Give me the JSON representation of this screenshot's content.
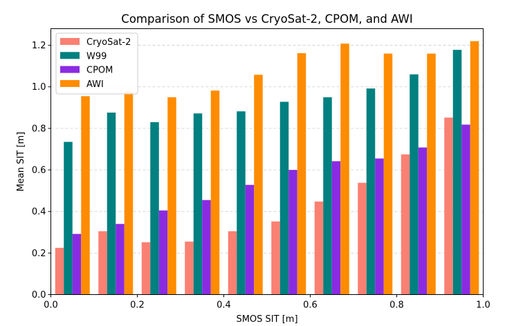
{
  "chart_data": {
    "type": "bar",
    "title": "Comparison of SMOS vs CryoSat-2, CPOM, and AWI",
    "xlabel": "SMOS SIT [m]",
    "ylabel": "Mean SIT [m]",
    "xlim": [
      0.0,
      1.0
    ],
    "ylim": [
      0.0,
      1.28
    ],
    "xticks": [
      "0.0",
      "0.2",
      "0.4",
      "0.6",
      "0.8",
      "1.0"
    ],
    "yticks": [
      "0.0",
      "0.2",
      "0.4",
      "0.6",
      "0.8",
      "1.0",
      "1.2"
    ],
    "grid": "y-dashed",
    "legend_position": "upper-left",
    "bin_centers": [
      0.05,
      0.15,
      0.25,
      0.35,
      0.45,
      0.55,
      0.65,
      0.75,
      0.85,
      0.95
    ],
    "bar_width": 0.02,
    "series": [
      {
        "name": "CryoSat-2",
        "color": "#fa8072",
        "values": [
          0.225,
          0.305,
          0.252,
          0.255,
          0.305,
          0.352,
          0.448,
          0.538,
          0.675,
          0.852
        ]
      },
      {
        "name": "W99",
        "color": "#008080",
        "values": [
          0.735,
          0.876,
          0.83,
          0.872,
          0.882,
          0.928,
          0.95,
          0.992,
          1.06,
          1.178
        ]
      },
      {
        "name": "CPOM",
        "color": "#8a2be2",
        "values": [
          0.292,
          0.34,
          0.405,
          0.455,
          0.528,
          0.6,
          0.642,
          0.655,
          0.708,
          0.818
        ]
      },
      {
        "name": "AWI",
        "color": "#ff8c00",
        "values": [
          0.955,
          0.975,
          0.95,
          0.982,
          1.058,
          1.162,
          1.208,
          1.16,
          1.16,
          1.22
        ]
      }
    ]
  }
}
